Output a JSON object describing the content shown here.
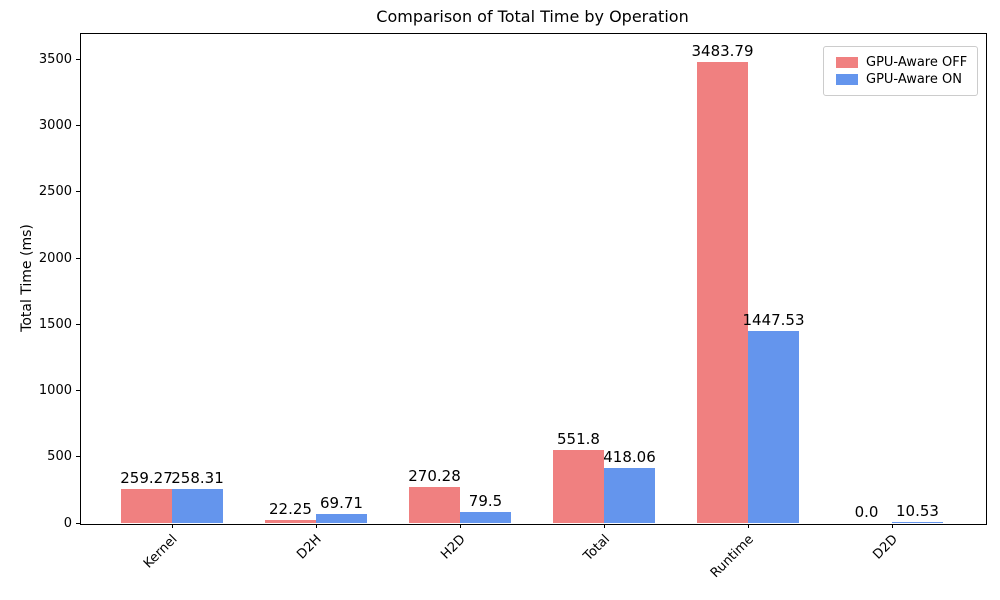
{
  "figure": {
    "background": "#ffffff",
    "axis_color": "#000000"
  },
  "chart_data": {
    "type": "bar",
    "title": "Comparison of Total Time by Operation",
    "xlabel": "",
    "ylabel": "Total Time (ms)",
    "categories": [
      "Kernel",
      "D2H",
      "H2D",
      "Total",
      "Runtime",
      "D2D"
    ],
    "series": [
      {
        "name": "GPU-Aware OFF",
        "color": "#F08080",
        "values": [
          259.27,
          22.25,
          270.28,
          551.8,
          3483.79,
          0.0
        ],
        "labels": [
          "259.27",
          "22.25",
          "270.28",
          "551.8",
          "3483.79",
          "0.0"
        ]
      },
      {
        "name": "GPU-Aware ON",
        "color": "#6495ED",
        "values": [
          258.31,
          69.71,
          79.5,
          418.06,
          1447.53,
          10.53
        ],
        "labels": [
          "258.31",
          "69.71",
          "79.5",
          "418.06",
          "1447.53",
          "10.53"
        ]
      }
    ],
    "ylim": [
      0,
      3700
    ],
    "yticks": [
      0,
      500,
      1000,
      1500,
      2000,
      2500,
      3000,
      3500
    ],
    "legend_position": "upper right",
    "grid": false,
    "bar_value_labels_shown": true
  }
}
